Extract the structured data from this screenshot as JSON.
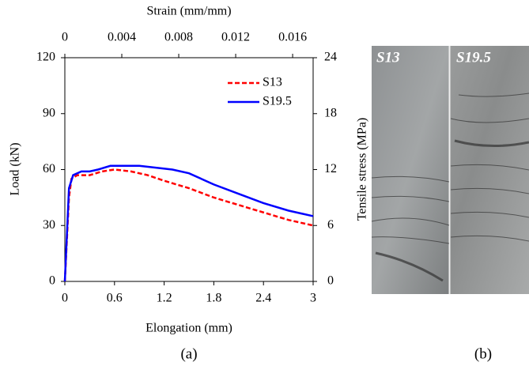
{
  "chart_data": {
    "type": "line",
    "xlabel": "Elongation (mm)",
    "ylabel": "Load (kN)",
    "x2label": "Strain (mm/mm)",
    "y2label": "Tensile stress (MPa)",
    "xlim": [
      0,
      3
    ],
    "xticks": [
      0,
      0.6,
      1.2,
      1.8,
      2.4,
      3
    ],
    "x2lim": [
      0,
      0.01744
    ],
    "x2ticks": [
      0,
      0.004,
      0.008,
      0.012,
      0.016
    ],
    "ylim": [
      0,
      120
    ],
    "yticks": [
      0,
      30,
      60,
      90,
      120
    ],
    "y2lim": [
      0,
      24
    ],
    "y2ticks": [
      0,
      6,
      12,
      18,
      24
    ],
    "legend": "upper right",
    "series": [
      {
        "name": "S13",
        "color": "#ff0000",
        "dash": true,
        "x": [
          0,
          0.05,
          0.08,
          0.15,
          0.3,
          0.45,
          0.6,
          0.8,
          1.0,
          1.2,
          1.5,
          1.8,
          2.1,
          2.4,
          2.7,
          3
        ],
        "values": [
          0,
          45,
          55,
          57,
          57,
          59,
          60,
          59,
          57,
          54,
          50,
          45,
          41,
          37,
          33,
          30
        ]
      },
      {
        "name": "S19.5",
        "color": "#0000ff",
        "dash": false,
        "x": [
          0,
          0.05,
          0.1,
          0.2,
          0.3,
          0.4,
          0.55,
          0.7,
          0.9,
          1.1,
          1.3,
          1.5,
          1.8,
          2.1,
          2.4,
          2.7,
          3
        ],
        "values": [
          0,
          50,
          57,
          59,
          59,
          60,
          62,
          62,
          62,
          61,
          60,
          58,
          52,
          47,
          42,
          38,
          35
        ]
      }
    ]
  },
  "figure": {
    "panel_a": "(a)",
    "panel_b": "(b)",
    "photo_labels": [
      "S13",
      "S19.5"
    ]
  }
}
